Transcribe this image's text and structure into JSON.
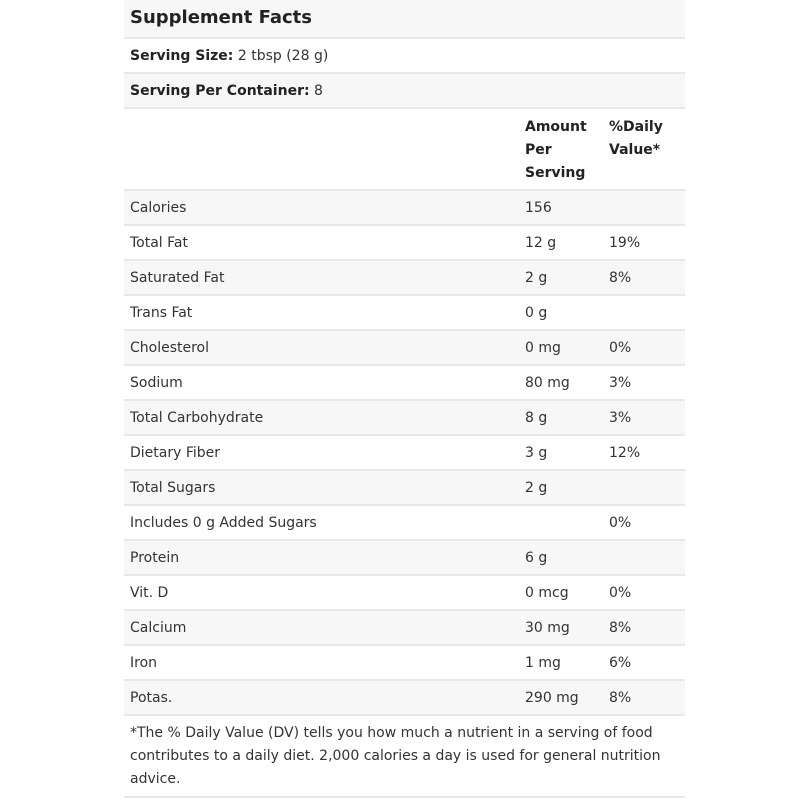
{
  "title": "Supplement Facts",
  "serving_size": {
    "label": "Serving Size:",
    "value": "2 tbsp (28 g)"
  },
  "servings_per_container": {
    "label": "Serving Per Container:",
    "value": "8"
  },
  "header": {
    "amount": "Amount Per Serving",
    "dv": "%Daily Value*"
  },
  "rows": [
    {
      "name": "Calories",
      "amount": "156",
      "dv": ""
    },
    {
      "name": "Total Fat",
      "amount": "12 g",
      "dv": "19%"
    },
    {
      "name": "Saturated Fat",
      "amount": "2 g",
      "dv": "8%"
    },
    {
      "name": "Trans Fat",
      "amount": "0 g",
      "dv": ""
    },
    {
      "name": "Cholesterol",
      "amount": "0 mg",
      "dv": "0%"
    },
    {
      "name": "Sodium",
      "amount": "80 mg",
      "dv": "3%"
    },
    {
      "name": "Total Carbohydrate",
      "amount": "8 g",
      "dv": "3%"
    },
    {
      "name": "Dietary Fiber",
      "amount": "3 g",
      "dv": "12%"
    },
    {
      "name": "Total Sugars",
      "amount": "2 g",
      "dv": ""
    },
    {
      "name": "Includes 0 g Added Sugars",
      "amount": "",
      "dv": "0%"
    },
    {
      "name": "Protein",
      "amount": "6 g",
      "dv": ""
    },
    {
      "name": "Vit. D",
      "amount": "0 mcg",
      "dv": "0%"
    },
    {
      "name": "Calcium",
      "amount": "30 mg",
      "dv": "8%"
    },
    {
      "name": "Iron",
      "amount": "1 mg",
      "dv": "6%"
    },
    {
      "name": "Potas.",
      "amount": "290 mg",
      "dv": "8%"
    }
  ],
  "footnote": "*The % Daily Value (DV) tells you how much a nutrient in a serving of food contributes to a daily diet. 2,000 calories a day is used for general nutrition advice."
}
